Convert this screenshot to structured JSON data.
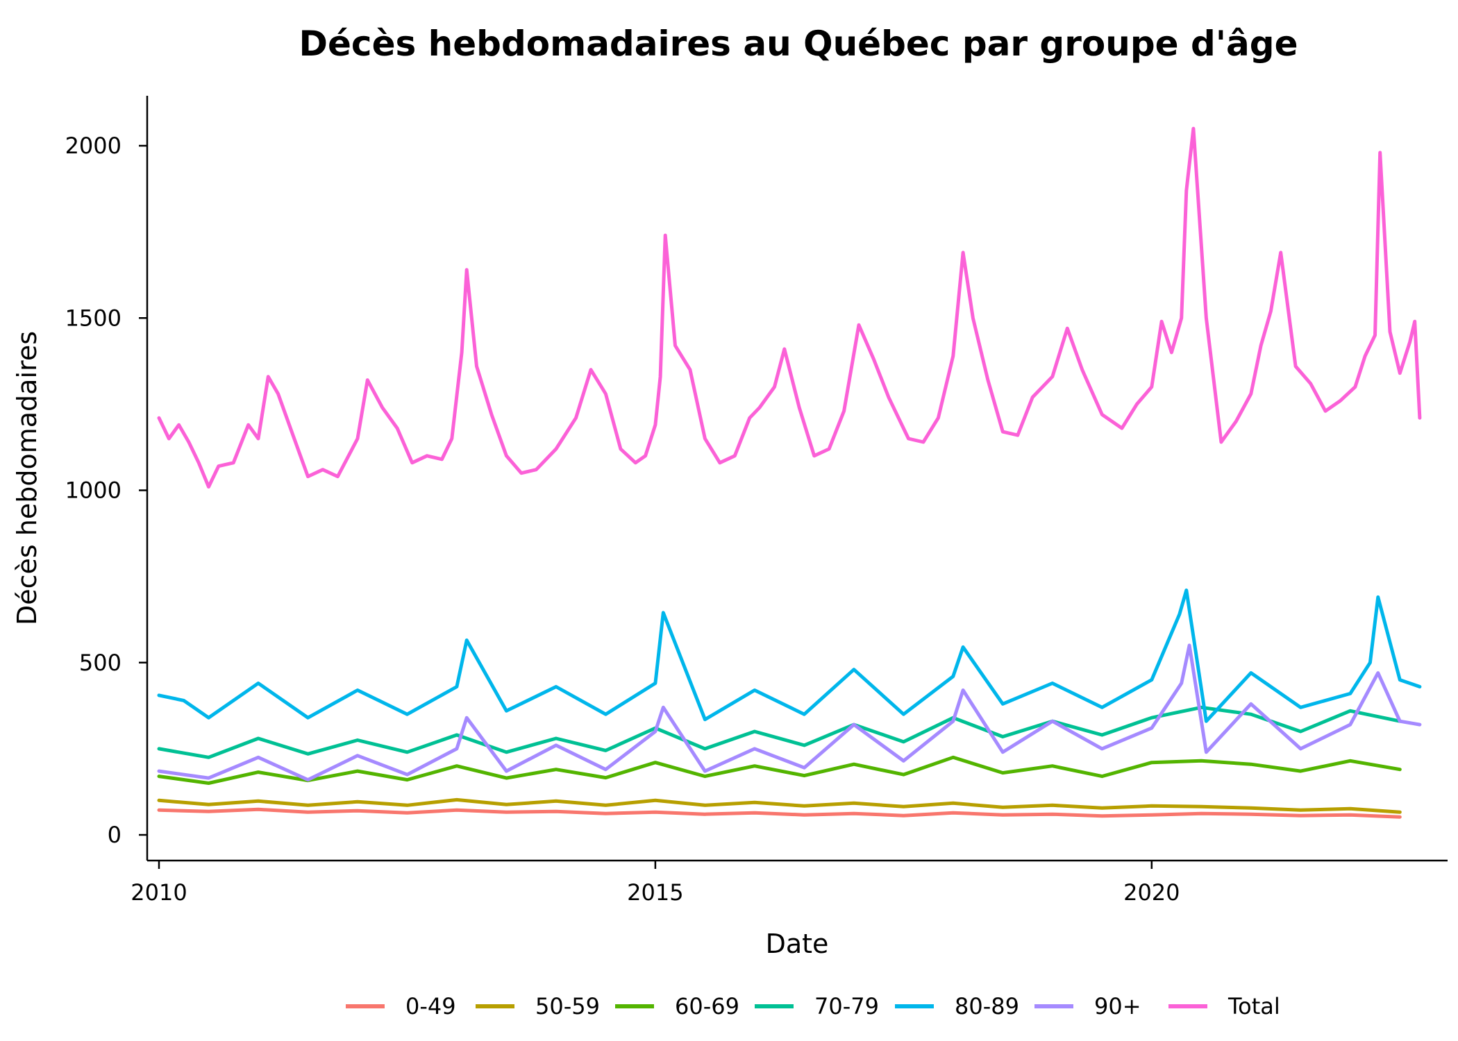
{
  "chart_data": {
    "type": "line",
    "title": "Décès hebdomadaires au Québec par groupe d'âge",
    "xlabel": "Date",
    "ylabel": "Décès hebdomadaires",
    "xlim": [
      2010.0,
      2022.75
    ],
    "ylim": [
      -60,
      2160
    ],
    "x_ticks": [
      2010,
      2015,
      2020
    ],
    "x_tick_labels": [
      "2010",
      "2015",
      "2020"
    ],
    "y_ticks": [
      0,
      500,
      1000,
      1500,
      2000
    ],
    "y_tick_labels": [
      "0",
      "500",
      "1000",
      "1500",
      "2000"
    ],
    "grid": false,
    "legend_position": "bottom",
    "series": [
      {
        "name": "0-49",
        "color": "#F8766D",
        "x": [
          2010.0,
          2010.5,
          2011.0,
          2011.5,
          2012.0,
          2012.5,
          2013.0,
          2013.5,
          2014.0,
          2014.5,
          2015.0,
          2015.5,
          2016.0,
          2016.5,
          2017.0,
          2017.5,
          2018.0,
          2018.5,
          2019.0,
          2019.5,
          2020.0,
          2020.5,
          2021.0,
          2021.5,
          2022.0,
          2022.5
        ],
        "y": [
          72,
          68,
          74,
          66,
          70,
          64,
          72,
          66,
          68,
          62,
          66,
          60,
          64,
          58,
          62,
          56,
          64,
          58,
          60,
          55,
          58,
          62,
          60,
          56,
          58,
          52
        ]
      },
      {
        "name": "50-59",
        "color": "#B79F00",
        "x": [
          2010.0,
          2010.5,
          2011.0,
          2011.5,
          2012.0,
          2012.5,
          2013.0,
          2013.5,
          2014.0,
          2014.5,
          2015.0,
          2015.5,
          2016.0,
          2016.5,
          2017.0,
          2017.5,
          2018.0,
          2018.5,
          2019.0,
          2019.5,
          2020.0,
          2020.5,
          2021.0,
          2021.5,
          2022.0,
          2022.5
        ],
        "y": [
          100,
          88,
          98,
          86,
          96,
          86,
          102,
          88,
          98,
          86,
          100,
          86,
          94,
          84,
          92,
          82,
          92,
          80,
          86,
          78,
          84,
          82,
          78,
          72,
          76,
          66
        ]
      },
      {
        "name": "60-69",
        "color": "#53B400",
        "x": [
          2010.0,
          2010.5,
          2011.0,
          2011.5,
          2012.0,
          2012.5,
          2013.0,
          2013.5,
          2014.0,
          2014.5,
          2015.0,
          2015.5,
          2016.0,
          2016.5,
          2017.0,
          2017.5,
          2018.0,
          2018.5,
          2019.0,
          2019.5,
          2020.0,
          2020.5,
          2021.0,
          2021.5,
          2022.0,
          2022.5
        ],
        "y": [
          170,
          150,
          182,
          158,
          185,
          160,
          200,
          165,
          190,
          166,
          210,
          170,
          200,
          172,
          205,
          175,
          225,
          180,
          200,
          170,
          210,
          215,
          205,
          185,
          215,
          190
        ]
      },
      {
        "name": "70-79",
        "color": "#00C094",
        "x": [
          2010.0,
          2010.5,
          2011.0,
          2011.5,
          2012.0,
          2012.5,
          2013.0,
          2013.5,
          2014.0,
          2014.5,
          2015.0,
          2015.5,
          2016.0,
          2016.5,
          2017.0,
          2017.5,
          2018.0,
          2018.5,
          2019.0,
          2019.5,
          2020.0,
          2020.5,
          2021.0,
          2021.5,
          2022.0,
          2022.5
        ],
        "y": [
          250,
          225,
          280,
          235,
          275,
          240,
          290,
          240,
          280,
          245,
          310,
          250,
          300,
          260,
          320,
          270,
          340,
          285,
          330,
          290,
          340,
          370,
          350,
          300,
          360,
          330
        ]
      },
      {
        "name": "80-89",
        "color": "#00B6EB",
        "x": [
          2010.0,
          2010.25,
          2010.5,
          2011.0,
          2011.5,
          2012.0,
          2012.5,
          2013.0,
          2013.1,
          2013.5,
          2014.0,
          2014.5,
          2015.0,
          2015.08,
          2015.5,
          2016.0,
          2016.5,
          2017.0,
          2017.5,
          2018.0,
          2018.1,
          2018.5,
          2019.0,
          2019.5,
          2020.0,
          2020.28,
          2020.35,
          2020.55,
          2021.0,
          2021.5,
          2022.0,
          2022.2,
          2022.28,
          2022.5,
          2022.7
        ],
        "y": [
          405,
          390,
          340,
          440,
          340,
          420,
          350,
          430,
          565,
          360,
          430,
          350,
          440,
          645,
          335,
          420,
          350,
          480,
          350,
          460,
          545,
          380,
          440,
          370,
          450,
          640,
          710,
          330,
          470,
          370,
          410,
          500,
          690,
          450,
          430
        ]
      },
      {
        "name": "90+",
        "color": "#A58AFF",
        "x": [
          2010.0,
          2010.5,
          2011.0,
          2011.5,
          2012.0,
          2012.5,
          2013.0,
          2013.1,
          2013.5,
          2014.0,
          2014.5,
          2015.0,
          2015.08,
          2015.5,
          2016.0,
          2016.5,
          2017.0,
          2017.5,
          2018.0,
          2018.1,
          2018.5,
          2019.0,
          2019.5,
          2020.0,
          2020.3,
          2020.38,
          2020.55,
          2021.0,
          2021.5,
          2022.0,
          2022.28,
          2022.5,
          2022.7
        ],
        "y": [
          185,
          165,
          225,
          160,
          230,
          175,
          250,
          340,
          185,
          260,
          190,
          300,
          370,
          185,
          250,
          195,
          320,
          215,
          330,
          420,
          240,
          330,
          250,
          310,
          440,
          550,
          240,
          380,
          250,
          320,
          470,
          330,
          320
        ]
      },
      {
        "name": "Total",
        "color": "#FB61D7",
        "x": [
          2010.0,
          2010.1,
          2010.2,
          2010.3,
          2010.4,
          2010.5,
          2010.6,
          2010.75,
          2010.9,
          2011.0,
          2011.1,
          2011.2,
          2011.35,
          2011.5,
          2011.65,
          2011.8,
          2012.0,
          2012.1,
          2012.25,
          2012.4,
          2012.55,
          2012.7,
          2012.85,
          2012.95,
          2013.05,
          2013.1,
          2013.2,
          2013.35,
          2013.5,
          2013.65,
          2013.8,
          2014.0,
          2014.2,
          2014.35,
          2014.5,
          2014.65,
          2014.8,
          2014.9,
          2015.0,
          2015.05,
          2015.1,
          2015.2,
          2015.35,
          2015.5,
          2015.65,
          2015.8,
          2015.95,
          2016.05,
          2016.2,
          2016.3,
          2016.45,
          2016.6,
          2016.75,
          2016.9,
          2017.05,
          2017.2,
          2017.35,
          2017.55,
          2017.7,
          2017.85,
          2018.0,
          2018.1,
          2018.2,
          2018.35,
          2018.5,
          2018.65,
          2018.8,
          2019.0,
          2019.15,
          2019.3,
          2019.5,
          2019.7,
          2019.85,
          2020.0,
          2020.1,
          2020.2,
          2020.3,
          2020.35,
          2020.42,
          2020.55,
          2020.7,
          2020.85,
          2021.0,
          2021.1,
          2021.2,
          2021.3,
          2021.45,
          2021.6,
          2021.75,
          2021.9,
          2022.05,
          2022.15,
          2022.25,
          2022.3,
          2022.4,
          2022.5,
          2022.6,
          2022.65,
          2022.7
        ],
        "y": [
          1210,
          1150,
          1190,
          1140,
          1080,
          1010,
          1070,
          1080,
          1190,
          1150,
          1330,
          1280,
          1160,
          1040,
          1060,
          1040,
          1150,
          1320,
          1240,
          1180,
          1080,
          1100,
          1090,
          1150,
          1400,
          1640,
          1360,
          1220,
          1100,
          1050,
          1060,
          1120,
          1210,
          1350,
          1280,
          1120,
          1080,
          1100,
          1190,
          1330,
          1740,
          1420,
          1350,
          1150,
          1080,
          1100,
          1210,
          1240,
          1300,
          1410,
          1240,
          1100,
          1120,
          1230,
          1480,
          1380,
          1270,
          1150,
          1140,
          1210,
          1390,
          1690,
          1500,
          1320,
          1170,
          1160,
          1270,
          1330,
          1470,
          1350,
          1220,
          1180,
          1250,
          1300,
          1490,
          1400,
          1500,
          1870,
          2050,
          1500,
          1140,
          1200,
          1280,
          1420,
          1520,
          1690,
          1360,
          1310,
          1230,
          1260,
          1300,
          1390,
          1450,
          1980,
          1460,
          1340,
          1430,
          1490,
          1210
        ]
      }
    ]
  }
}
